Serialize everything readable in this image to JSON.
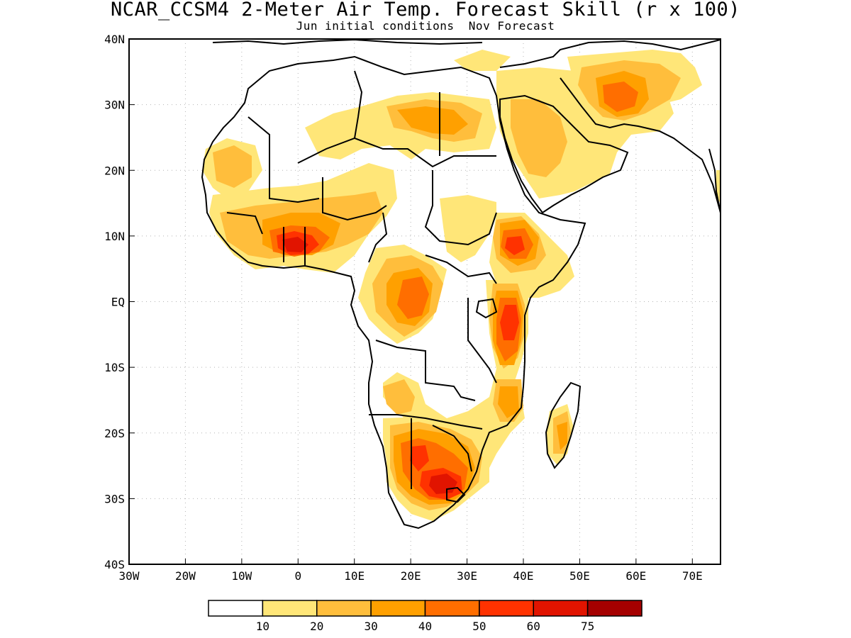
{
  "header": {
    "title": "NCAR_CCSM4 2-Meter Air Temp. Forecast Skill (r x 100)",
    "subtitle": "Jun initial conditions  Nov Forecast"
  },
  "axes": {
    "lon_ticks": [
      "30W",
      "20W",
      "10W",
      "0",
      "10E",
      "20E",
      "30E",
      "40E",
      "50E",
      "60E",
      "70E"
    ],
    "lat_ticks": [
      "40N",
      "30N",
      "20N",
      "10N",
      "EQ",
      "10S",
      "20S",
      "30S",
      "40S"
    ],
    "lon_range": [
      -30,
      75
    ],
    "lat_range": [
      -40,
      40
    ]
  },
  "legend": {
    "labels": [
      "10",
      "20",
      "30",
      "40",
      "50",
      "60",
      "75"
    ],
    "colors": [
      "#ffffff",
      "#ffe678",
      "#ffbe3c",
      "#ffa000",
      "#ff6e00",
      "#ff3200",
      "#e11400",
      "#a50000"
    ]
  },
  "map": {
    "skill_regions": [
      {
        "name": "West Africa coast",
        "level": 6,
        "lon": -2,
        "lat": 8.5
      },
      {
        "name": "Southern Africa",
        "level": 6,
        "lon": 26,
        "lat": -28
      },
      {
        "name": "East Africa",
        "level": 5,
        "lon": 38,
        "lat": 0
      },
      {
        "name": "Ethiopia",
        "level": 5,
        "lon": 37,
        "lat": 9
      },
      {
        "name": "Central Africa",
        "level": 4,
        "lon": 20,
        "lat": 1
      },
      {
        "name": "Botswana",
        "level": 5,
        "lon": 22,
        "lat": -25
      },
      {
        "name": "Iran",
        "level": 4,
        "lon": 56,
        "lat": 31
      },
      {
        "name": "Madagascar",
        "level": 3,
        "lon": 47,
        "lat": -20
      }
    ]
  }
}
